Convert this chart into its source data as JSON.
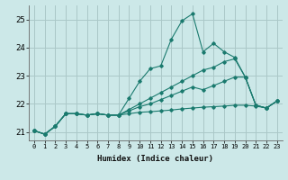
{
  "background_color": "#cce8e8",
  "grid_color": "#aac8c8",
  "line_color": "#1a7a6e",
  "xlabel": "Humidex (Indice chaleur)",
  "xlim": [
    -0.5,
    23.5
  ],
  "ylim": [
    20.7,
    25.5
  ],
  "yticks": [
    21,
    22,
    23,
    24,
    25
  ],
  "xticks": [
    0,
    1,
    2,
    3,
    4,
    5,
    6,
    7,
    8,
    9,
    10,
    11,
    12,
    13,
    14,
    15,
    16,
    17,
    18,
    19,
    20,
    21,
    22,
    23
  ],
  "series": [
    [
      21.05,
      20.92,
      21.2,
      21.65,
      21.65,
      21.6,
      21.65,
      21.6,
      21.6,
      22.2,
      22.8,
      23.25,
      23.35,
      24.3,
      24.95,
      25.2,
      23.85,
      24.15,
      23.85,
      23.65,
      22.95,
      21.95,
      21.85,
      22.1
    ],
    [
      21.05,
      20.92,
      21.2,
      21.65,
      21.65,
      21.6,
      21.65,
      21.6,
      21.6,
      21.65,
      21.7,
      21.72,
      21.75,
      21.78,
      21.82,
      21.85,
      21.88,
      21.9,
      21.92,
      21.95,
      21.95,
      21.92,
      21.85,
      22.1
    ],
    [
      21.05,
      20.92,
      21.2,
      21.65,
      21.65,
      21.6,
      21.65,
      21.6,
      21.6,
      21.8,
      22.0,
      22.2,
      22.4,
      22.6,
      22.8,
      23.0,
      23.2,
      23.3,
      23.5,
      23.6,
      22.95,
      21.95,
      21.85,
      22.1
    ],
    [
      21.05,
      20.92,
      21.2,
      21.65,
      21.65,
      21.6,
      21.65,
      21.6,
      21.6,
      21.75,
      21.9,
      22.0,
      22.15,
      22.3,
      22.45,
      22.6,
      22.5,
      22.65,
      22.8,
      22.95,
      22.95,
      21.95,
      21.85,
      22.1
    ]
  ]
}
